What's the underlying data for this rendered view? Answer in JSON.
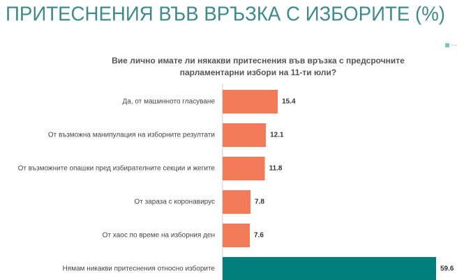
{
  "chart_data": {
    "type": "hbar",
    "title": "ПРИТЕСНЕНИЯ ВЪВ ВРЪЗКА С ИЗБОРИТЕ (%)",
    "subtitle": [
      "Вие лично имате ли някакви притеснения  във връзка с предсрочните",
      "парламентарни  избори на 11-ти юли?"
    ],
    "categories": [
      "Да, от машинното гласуване",
      "От възможна манипулация на изборните резултати",
      "От възможните опашки пред избирателните секции и жегите",
      "От зараза с коронавирус",
      "От хаос по време на изборния ден",
      "Нямам никакви притеснения относно изборите"
    ],
    "values": [
      15.4,
      12.1,
      11.8,
      7.8,
      7.6,
      59.6
    ],
    "colors": [
      "#f47b5a",
      "#f47b5a",
      "#f47b5a",
      "#f47b5a",
      "#f47b5a",
      "#00807c"
    ]
  }
}
